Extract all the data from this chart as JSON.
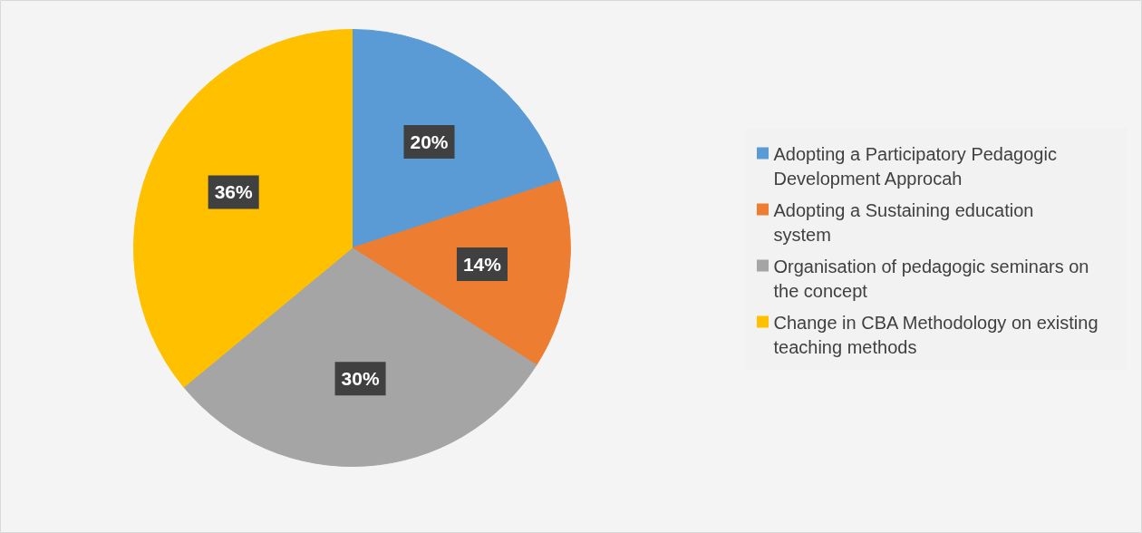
{
  "chart_data": {
    "type": "pie",
    "categories": [
      "Adopting a Participatory Pedagogic Development Approcah",
      "Adopting a Sustaining education system",
      "Organisation of pedagogic seminars on the concept",
      "Change in CBA Methodology on existing teaching methods"
    ],
    "values": [
      20,
      14,
      30,
      36
    ],
    "colors": [
      "#5b9bd5",
      "#ed7d31",
      "#a5a5a5",
      "#ffc000"
    ],
    "value_labels": [
      "20%",
      "14%",
      "30%",
      "36%"
    ],
    "legend": "right"
  }
}
